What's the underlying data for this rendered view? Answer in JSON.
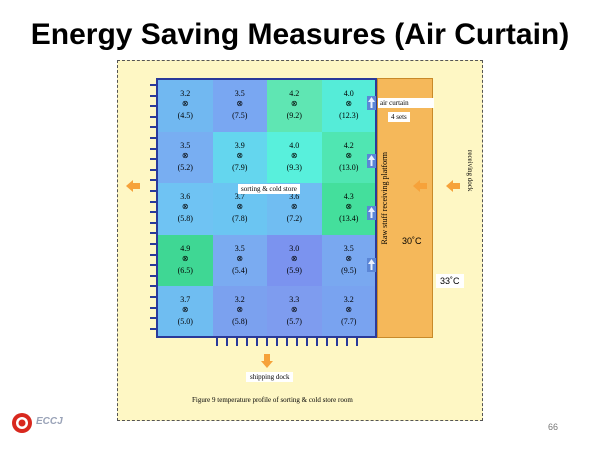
{
  "slide": {
    "title": "Energy Saving Measures (Air Curtain)",
    "page_number": "66",
    "logo_text": "ECCJ"
  },
  "figure": {
    "caption": "Figure 9   temperature profile of sorting & cold store room",
    "zone_label": "sorting & cold store",
    "air_curtain_label": "air curtain",
    "air_curtain_count": "4 sets",
    "platform_label": "Raw stuff receiving platform",
    "receiving_dock_label": "receiving dock",
    "shipping_dock_label": "shipping dock",
    "platform_temp": "30˚C",
    "outside_temp": "33˚C",
    "grid": [
      [
        {
          "top": "3.2",
          "bottom": "(4.5)",
          "color": "#71b8f1"
        },
        {
          "top": "3.5",
          "bottom": "(7.5)",
          "color": "#79a7f2"
        },
        {
          "top": "4.2",
          "bottom": "(9.2)",
          "color": "#5fe6b3"
        },
        {
          "top": "4.0",
          "bottom": "(12.3)",
          "color": "#55ecd8"
        }
      ],
      [
        {
          "top": "3.5",
          "bottom": "(5.2)",
          "color": "#78aef2"
        },
        {
          "top": "3.9",
          "bottom": "(7.9)",
          "color": "#64d6ee"
        },
        {
          "top": "4.0",
          "bottom": "(9.3)",
          "color": "#58f0dc"
        },
        {
          "top": "4.2",
          "bottom": "(13.0)",
          "color": "#50e6b2"
        }
      ],
      [
        {
          "top": "3.6",
          "bottom": "(5.8)",
          "color": "#6fc3f3"
        },
        {
          "top": "3.7",
          "bottom": "(7.8)",
          "color": "#6bc5f2"
        },
        {
          "top": "3.6",
          "bottom": "(7.2)",
          "color": "#70bdf2"
        },
        {
          "top": "4.3",
          "bottom": "(13.4)",
          "color": "#44df9c"
        }
      ],
      [
        {
          "top": "4.9",
          "bottom": "(6.5)",
          "color": "#3fd794"
        },
        {
          "top": "3.5",
          "bottom": "(5.4)",
          "color": "#7aabf1"
        },
        {
          "top": "3.0",
          "bottom": "(5.9)",
          "color": "#7b93ef"
        },
        {
          "top": "3.5",
          "bottom": "(9.5)",
          "color": "#79a8f0"
        }
      ],
      [
        {
          "top": "3.7",
          "bottom": "(5.0)",
          "color": "#6fbdf1"
        },
        {
          "top": "3.2",
          "bottom": "(5.8)",
          "color": "#7ba1ef"
        },
        {
          "top": "3.3",
          "bottom": "(5.7)",
          "color": "#7e9cef"
        },
        {
          "top": "3.2",
          "bottom": "(7.7)",
          "color": "#79a3f0"
        }
      ]
    ]
  }
}
